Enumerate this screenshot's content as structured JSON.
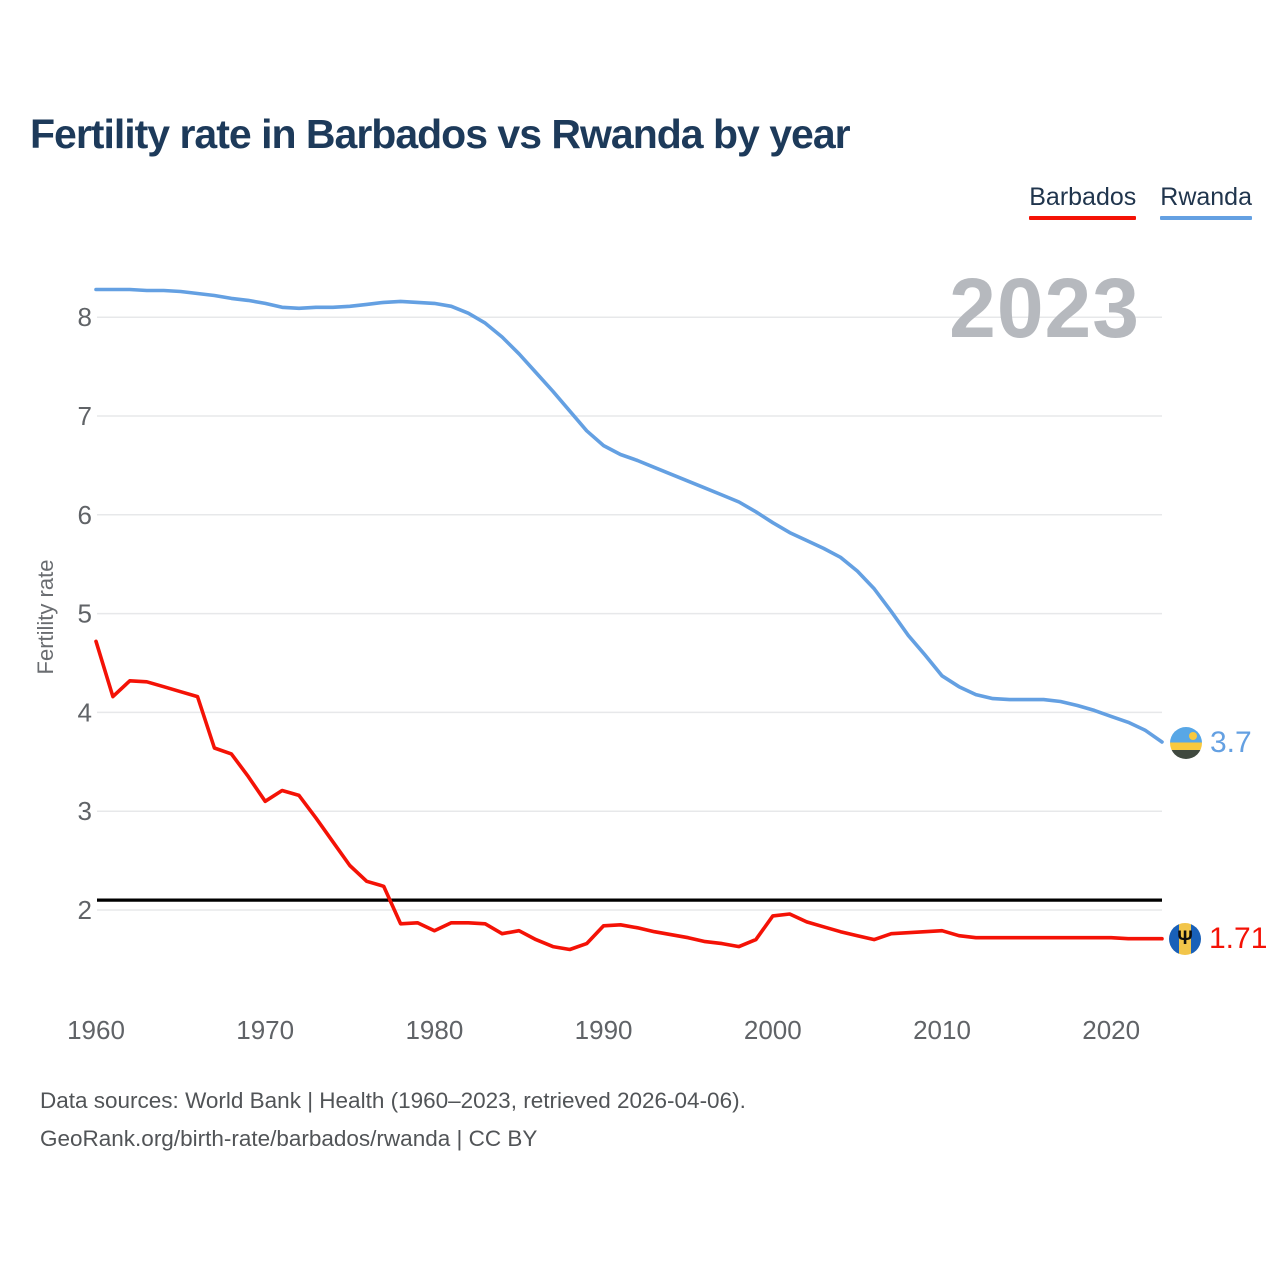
{
  "header": {
    "title": "Fertility rate in Barbados vs Rwanda by year"
  },
  "legend": {
    "items": [
      {
        "label": "Barbados"
      },
      {
        "label": "Rwanda"
      }
    ]
  },
  "watermark": "2023",
  "axes": {
    "ylabel": "Fertility rate"
  },
  "end_labels": {
    "barbados": "1.71",
    "rwanda": "3.7"
  },
  "footer": {
    "line1": "Data sources: World Bank | Health (1960–2023, retrieved 2026-04-06).",
    "line2": "GeoRank.org/birth-rate/barbados/rwanda | CC BY"
  },
  "chart_data": {
    "type": "line",
    "title": "Fertility rate in Barbados vs Rwanda by year",
    "xlabel": "",
    "ylabel": "Fertility rate",
    "x_range": [
      1960,
      2023
    ],
    "xticks": [
      1960,
      1970,
      1980,
      1990,
      2000,
      2010,
      2020
    ],
    "yticks": [
      2,
      3,
      4,
      5,
      6,
      7,
      8
    ],
    "ylim": [
      1.45,
      8.55
    ],
    "grid": true,
    "legend_position": "top-right",
    "threshold_line": {
      "value": 2.1,
      "color": "#000000"
    },
    "series": [
      {
        "name": "Barbados",
        "color": "#f41206",
        "values": [
          4.72,
          4.16,
          4.32,
          4.31,
          4.26,
          4.21,
          4.16,
          3.64,
          3.58,
          3.35,
          3.1,
          3.21,
          3.16,
          2.93,
          2.69,
          2.45,
          2.29,
          2.24,
          1.86,
          1.87,
          1.79,
          1.87,
          1.87,
          1.86,
          1.76,
          1.79,
          1.7,
          1.63,
          1.6,
          1.66,
          1.84,
          1.85,
          1.82,
          1.78,
          1.75,
          1.72,
          1.68,
          1.66,
          1.63,
          1.7,
          1.94,
          1.96,
          1.88,
          1.83,
          1.78,
          1.74,
          1.7,
          1.76,
          1.77,
          1.78,
          1.79,
          1.74,
          1.72,
          1.72,
          1.72,
          1.72,
          1.72,
          1.72,
          1.72,
          1.72,
          1.72,
          1.71,
          1.71,
          1.71
        ]
      },
      {
        "name": "Rwanda",
        "color": "#64a0e2",
        "values": [
          8.28,
          8.28,
          8.28,
          8.27,
          8.27,
          8.26,
          8.24,
          8.22,
          8.19,
          8.17,
          8.14,
          8.1,
          8.09,
          8.1,
          8.1,
          8.11,
          8.13,
          8.15,
          8.16,
          8.15,
          8.14,
          8.11,
          8.04,
          7.94,
          7.8,
          7.63,
          7.44,
          7.25,
          7.05,
          6.85,
          6.7,
          6.61,
          6.55,
          6.48,
          6.41,
          6.34,
          6.27,
          6.2,
          6.13,
          6.03,
          5.92,
          5.82,
          5.74,
          5.66,
          5.57,
          5.43,
          5.25,
          5.02,
          4.78,
          4.58,
          4.37,
          4.26,
          4.18,
          4.14,
          4.13,
          4.13,
          4.13,
          4.11,
          4.07,
          4.02,
          3.96,
          3.9,
          3.82,
          3.7
        ]
      }
    ]
  }
}
